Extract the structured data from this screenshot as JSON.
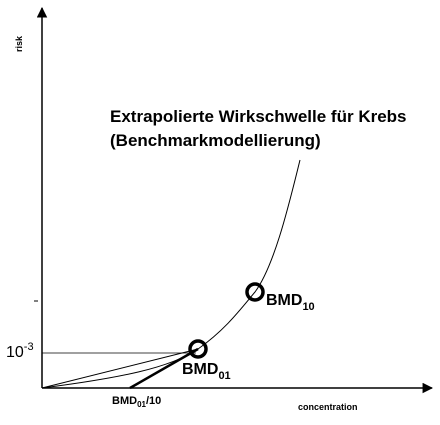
{
  "axes": {
    "y_label": "risk",
    "x_label": "concentration"
  },
  "title_lines": [
    "Extrapolierte Wirkschwelle für Krebs",
    "(Benchmarkmodellierung)"
  ],
  "labels": {
    "risk_level": {
      "base": "10",
      "sup": "-3"
    },
    "bmd10": {
      "base": "BMD",
      "sub": "10"
    },
    "bmd01": {
      "base": "BMD",
      "sub": "01"
    },
    "bmd01_10": {
      "base": "BMD",
      "sub": "01",
      "suffix": "/10"
    }
  }
}
